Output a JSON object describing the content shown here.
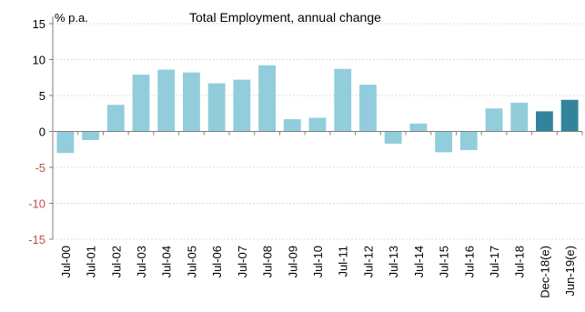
{
  "chart_data": {
    "type": "bar",
    "title": "Total Employment, annual change",
    "ylabel": "% p.a.",
    "xlabel": "",
    "ylim": [
      -15,
      15
    ],
    "yticks": [
      15,
      10,
      5,
      0,
      -5,
      -10,
      -15
    ],
    "grid": true,
    "categories": [
      "Jul-00",
      "Jul-01",
      "Jul-02",
      "Jul-03",
      "Jul-04",
      "Jul-05",
      "Jul-06",
      "Jul-07",
      "Jul-08",
      "Jul-09",
      "Jul-10",
      "Jul-11",
      "Jul-12",
      "Jul-13",
      "Jul-14",
      "Jul-15",
      "Jul-16",
      "Jul-17",
      "Jul-18",
      "Dec-18(e)",
      "Jun-19(e)"
    ],
    "values": [
      -3.0,
      -1.2,
      3.7,
      7.9,
      8.6,
      8.2,
      6.7,
      7.2,
      9.2,
      1.7,
      1.9,
      8.7,
      6.5,
      -1.7,
      1.1,
      -2.9,
      -2.6,
      3.2,
      4.0,
      2.8,
      4.4
    ],
    "estimate_flags": [
      false,
      false,
      false,
      false,
      false,
      false,
      false,
      false,
      false,
      false,
      false,
      false,
      false,
      false,
      false,
      false,
      false,
      false,
      false,
      true,
      true
    ],
    "colors": {
      "bar": "#92cddc",
      "estimate_bar": "#31849b",
      "positive_tick_label": "#000000",
      "negative_tick_label": "#c0504d",
      "axis": "#7f7f7f",
      "grid": "#d9d9d9"
    }
  }
}
